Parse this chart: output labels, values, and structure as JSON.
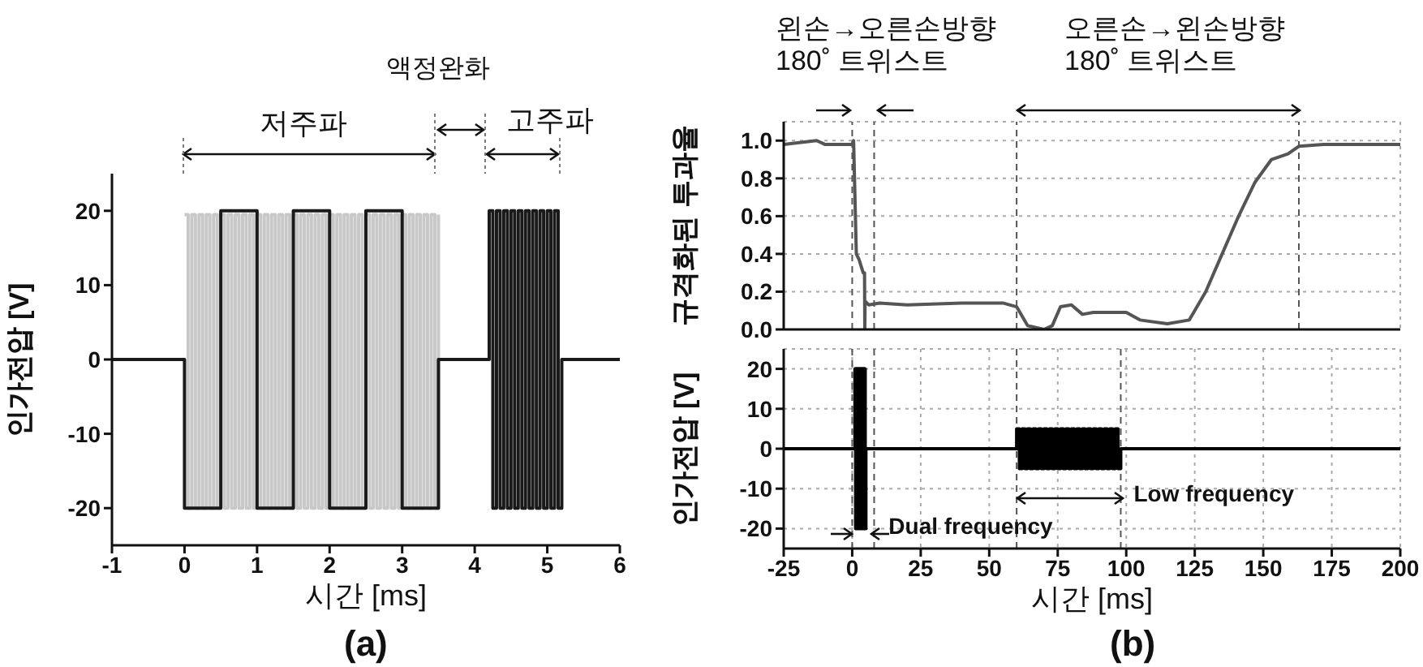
{
  "chart_data": [
    {
      "type": "step",
      "xlabel": "시간 [ms]",
      "ylabel": "인가전압 [V]",
      "xlim": [
        -1,
        6
      ],
      "xticks": [
        -1,
        0,
        1,
        2,
        3,
        4,
        5,
        6
      ],
      "ylim": [
        -25,
        25
      ],
      "yticks": [
        -20,
        -10,
        0,
        10,
        20
      ],
      "series": [
        {
          "color": "#c8c8c8",
          "x": [
            0,
            0.05,
            0.1,
            0.15,
            0.2,
            0.25,
            0.3,
            0.35,
            0.4,
            0.45,
            0.5,
            0.55,
            0.6,
            0.65,
            0.7,
            0.75,
            0.8,
            0.85,
            0.9,
            0.95,
            1,
            1.05,
            1.1,
            1.15,
            1.2,
            1.25,
            1.3,
            1.35,
            1.4,
            1.45,
            1.5,
            1.55,
            1.6,
            1.65,
            1.7,
            1.75,
            1.8,
            1.85,
            1.9,
            1.95,
            2,
            2.05,
            2.1,
            2.15,
            2.2,
            2.25,
            2.3,
            2.35,
            2.4,
            2.45,
            2.5,
            2.55,
            2.6,
            2.65,
            2.7,
            2.75,
            2.8,
            2.85,
            2.9,
            2.95,
            3,
            3.05,
            3.1,
            3.15,
            3.2,
            3.25,
            3.3,
            3.35,
            3.4,
            3.45,
            3.5
          ],
          "values": [
            19.5,
            -20,
            19.5,
            -20,
            19.5,
            -20,
            19.5,
            -20,
            19.5,
            -20,
            19.5,
            -20,
            19.5,
            -20,
            19.5,
            -20,
            19.5,
            -20,
            19.5,
            -20,
            19.5,
            -20,
            19.5,
            -20,
            19.5,
            -20,
            19.5,
            -20,
            19.5,
            -20,
            19.5,
            -20,
            19.5,
            -20,
            19.5,
            -20,
            19.5,
            -20,
            19.5,
            -20,
            19.5,
            -20,
            19.5,
            -20,
            19.5,
            -20,
            19.5,
            -20,
            19.5,
            -20,
            19.5,
            -20,
            19.5,
            -20,
            19.5,
            -20,
            19.5,
            -20,
            19.5,
            -20,
            19.5,
            -20,
            19.5,
            -20,
            19.5,
            -20,
            19.5,
            -20,
            19.5,
            -20,
            19.5
          ]
        },
        {
          "color": "#1a1a1a",
          "x": [
            -1,
            0,
            0.5,
            1,
            1.5,
            2,
            2.5,
            3,
            3.5,
            4.2,
            4.25,
            4.3,
            4.35,
            4.4,
            4.45,
            4.5,
            4.55,
            4.6,
            4.65,
            4.7,
            4.75,
            4.8,
            4.85,
            4.9,
            4.95,
            5,
            5.05,
            5.1,
            5.15,
            5.2,
            6
          ],
          "values": [
            0,
            -20,
            20,
            -20,
            20,
            -20,
            20,
            -20,
            0,
            20,
            -20,
            20,
            -20,
            20,
            -20,
            20,
            -20,
            20,
            -20,
            20,
            -20,
            20,
            -20,
            20,
            -20,
            20,
            -20,
            20,
            -20,
            0,
            0
          ]
        }
      ],
      "annotations": [
        "저주파",
        "액정완화",
        "고주파",
        "(a)"
      ]
    },
    {
      "type": "line",
      "ylabel": "규격화된 투과율",
      "xlim": [
        -25,
        200
      ],
      "xticks": [
        -25,
        0,
        25,
        50,
        75,
        100,
        125,
        150,
        175,
        200
      ],
      "ylim": [
        0,
        1.1
      ],
      "yticks": [
        {
          "value": 0,
          "label": "0.0"
        },
        {
          "value": 0.2,
          "label": "0.2"
        },
        {
          "value": 0.4,
          "label": "0.4"
        },
        {
          "value": 0.6,
          "label": "0.6"
        },
        {
          "value": 0.8,
          "label": "0.8"
        },
        {
          "value": 1,
          "label": "1.0"
        }
      ],
      "tick_labels": "y",
      "grid": true,
      "series": [
        {
          "color": "#555555",
          "x": [
            -25,
            -13,
            -10,
            0,
            0.5,
            1.5,
            2.5,
            4,
            4.5,
            4.6,
            4.7,
            6,
            10,
            20,
            40,
            55,
            60,
            64,
            70,
            73,
            76,
            80,
            84,
            88,
            100,
            105,
            115,
            123,
            125,
            129,
            135,
            141,
            147,
            153,
            159,
            163,
            172,
            200
          ],
          "values": [
            0.98,
            1.0,
            0.98,
            0.98,
            1.0,
            0.4,
            0.37,
            0.3,
            0.3,
            0.0,
            0.15,
            0.13,
            0.14,
            0.13,
            0.14,
            0.14,
            0.12,
            0.02,
            0.0,
            0.02,
            0.12,
            0.13,
            0.08,
            0.09,
            0.09,
            0.05,
            0.03,
            0.05,
            0.1,
            0.2,
            0.4,
            0.6,
            0.78,
            0.9,
            0.93,
            0.97,
            0.98,
            0.98
          ]
        }
      ],
      "ref_lines": [
        {
          "axis": "x",
          "value": 0,
          "line_style": "dashed",
          "color": "#555555"
        },
        {
          "axis": "x",
          "value": 8,
          "line_style": "dashed",
          "color": "#555555"
        },
        {
          "axis": "x",
          "value": 60,
          "line_style": "dashed",
          "color": "#555555"
        },
        {
          "axis": "x",
          "value": 163,
          "line_style": "dashed",
          "color": "#555555"
        }
      ],
      "annotations": [
        "왼손→오른손방향\n180˚ 트위스트",
        "오른손→왼손방향\n180˚ 트위스트"
      ]
    },
    {
      "type": "step",
      "xlabel": "시간 [ms]",
      "ylabel": "인가전압 [V]",
      "xlim": [
        -25,
        200
      ],
      "xticks": [
        -25,
        0,
        25,
        50,
        75,
        100,
        125,
        150,
        175,
        200
      ],
      "ylim": [
        -25,
        25
      ],
      "yticks": [
        -20,
        -10,
        0,
        10,
        20
      ],
      "grid": true,
      "series": [
        {
          "color": "#000000",
          "x": [
            -25,
            1,
            1.25,
            1.5,
            1.75,
            2,
            2.25,
            2.5,
            2.75,
            3,
            3.25,
            3.5,
            3.75,
            4,
            4.25,
            4.5,
            4.75,
            5,
            60,
            61,
            62,
            63,
            64,
            65,
            66,
            67,
            68,
            69,
            70,
            71,
            72,
            73,
            74,
            75,
            76,
            77,
            78,
            79,
            80,
            81,
            82,
            83,
            84,
            85,
            86,
            87,
            88,
            89,
            90,
            91,
            92,
            93,
            94,
            95,
            96,
            97,
            98,
            200
          ],
          "values": [
            0,
            20,
            -20,
            20,
            -20,
            20,
            -20,
            20,
            -20,
            20,
            -20,
            20,
            -20,
            20,
            -20,
            20,
            -20,
            0,
            5,
            -5,
            5,
            -5,
            5,
            -5,
            5,
            -5,
            5,
            -5,
            5,
            -5,
            5,
            -5,
            5,
            -5,
            5,
            -5,
            5,
            -5,
            5,
            -5,
            5,
            -5,
            5,
            -5,
            5,
            -5,
            5,
            -5,
            5,
            -5,
            5,
            -5,
            5,
            -5,
            5,
            -5,
            0,
            0
          ]
        }
      ],
      "ref_lines": [
        {
          "axis": "x",
          "value": 0,
          "line_style": "dashed",
          "color": "#555555"
        },
        {
          "axis": "x",
          "value": 8,
          "line_style": "dashed",
          "color": "#555555"
        },
        {
          "axis": "x",
          "value": 60,
          "line_style": "dashed",
          "color": "#555555"
        },
        {
          "axis": "x",
          "value": 98,
          "line_style": "dashed",
          "color": "#555555"
        }
      ],
      "annotations": [
        {
          "text": "Dual frequency",
          "x": 5,
          "y": -20
        },
        {
          "text": "Low frequency",
          "x": 98,
          "y": -12
        },
        "(b)"
      ]
    }
  ]
}
